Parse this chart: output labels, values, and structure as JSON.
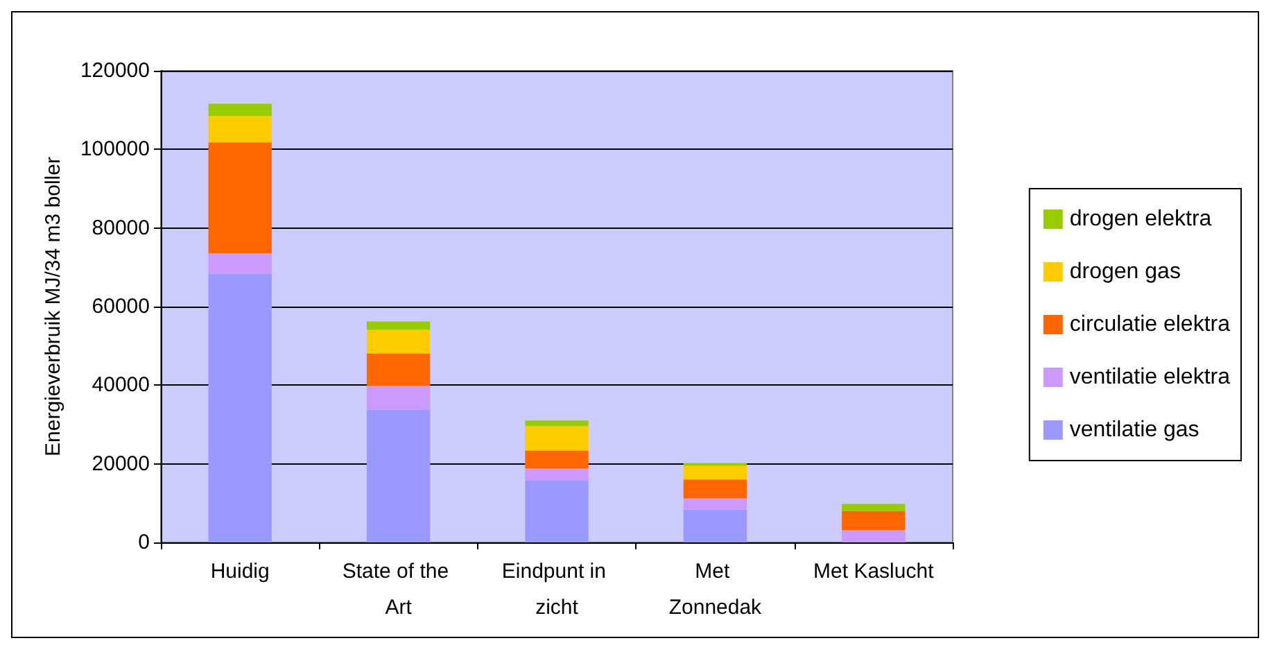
{
  "chart_data": {
    "type": "bar",
    "stacked": true,
    "ylabel": "Energieverbruik MJ/34 m3 boller",
    "categories": [
      "Huidig",
      "State of the Art",
      "Eindpunt in zicht",
      "Met Zonnedak",
      "Met Kaslucht"
    ],
    "series": [
      {
        "name": "ventilatie gas",
        "color": "#9999ff",
        "values": [
          68400,
          33800,
          15700,
          8400,
          0
        ]
      },
      {
        "name": "ventilatie elektra",
        "color": "#cc99ff",
        "values": [
          5200,
          6000,
          3100,
          2800,
          3100
        ]
      },
      {
        "name": "circulatie elektra",
        "color": "#ff6600",
        "values": [
          28200,
          8300,
          4600,
          4800,
          4900
        ]
      },
      {
        "name": "drogen gas",
        "color": "#ffcc00",
        "values": [
          6700,
          6000,
          6200,
          3500,
          0
        ]
      },
      {
        "name": "drogen elektra",
        "color": "#99cc00",
        "values": [
          3100,
          2100,
          1400,
          700,
          1800
        ]
      }
    ],
    "ylim": [
      0,
      120000
    ],
    "yticks": [
      0,
      20000,
      40000,
      60000,
      80000,
      100000,
      120000
    ],
    "grid": "y",
    "legend": "right"
  }
}
